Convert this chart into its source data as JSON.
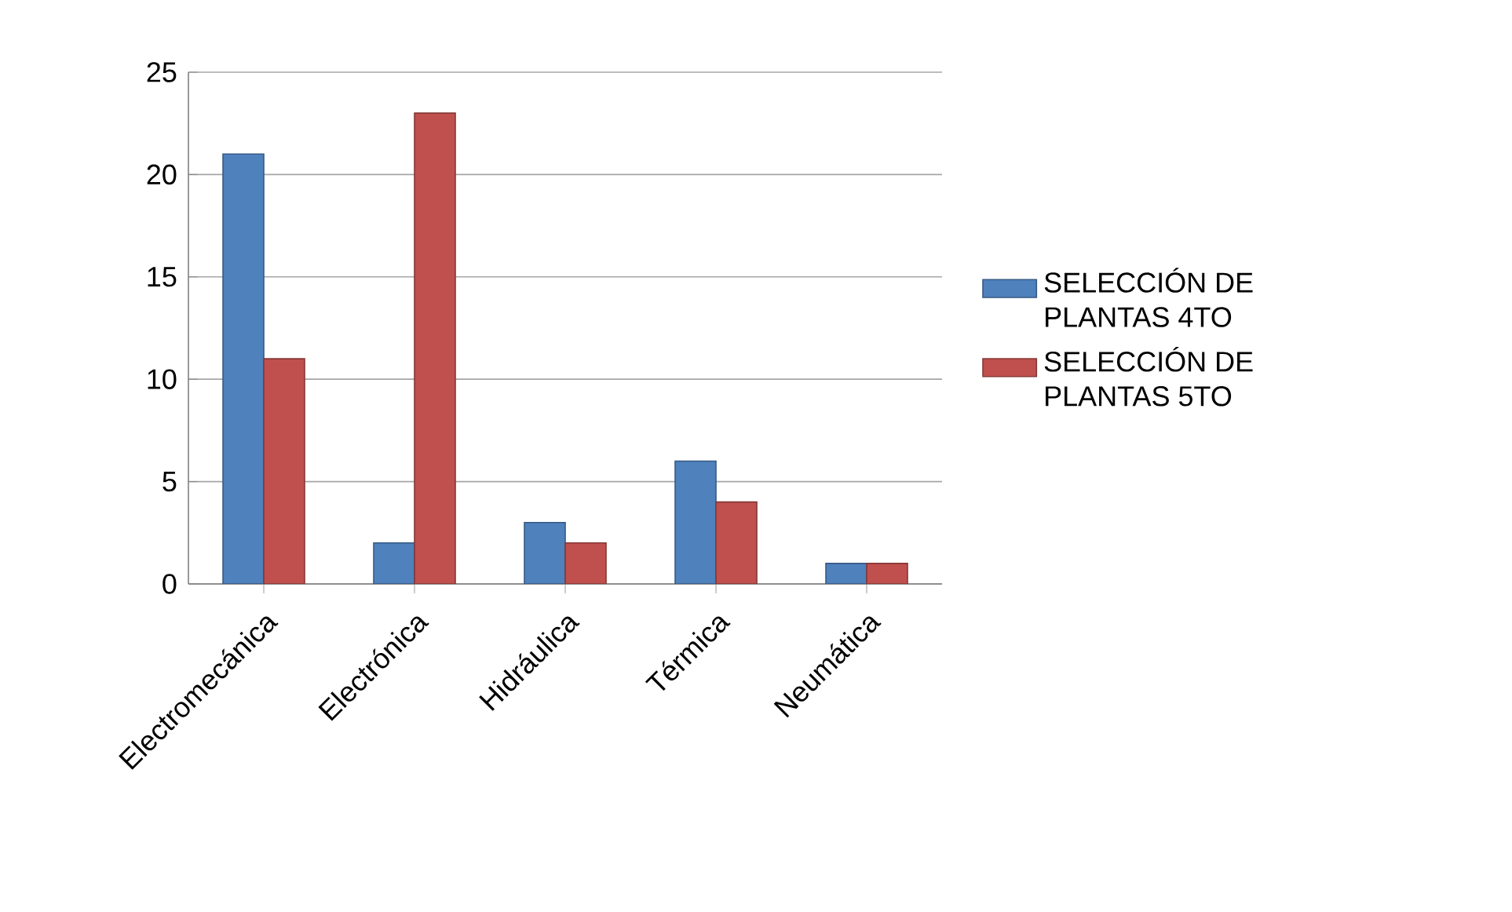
{
  "chart_data": {
    "type": "bar",
    "categories": [
      "Electromecánica",
      "Electrónica",
      "Hidráulica",
      "Térmica",
      "Neumática"
    ],
    "series": [
      {
        "name": "SELECCIÓN DE PLANTAS 4TO",
        "color": "#4f81bd",
        "values": [
          21,
          2,
          3,
          6,
          1
        ]
      },
      {
        "name": "SELECCIÓN DE PLANTAS 5TO",
        "color": "#c0504d",
        "values": [
          11,
          23,
          2,
          4,
          1
        ]
      }
    ],
    "ylim": [
      0,
      25
    ],
    "yticks": [
      0,
      5,
      10,
      15,
      20,
      25
    ],
    "grid": "y",
    "legend": "right"
  }
}
